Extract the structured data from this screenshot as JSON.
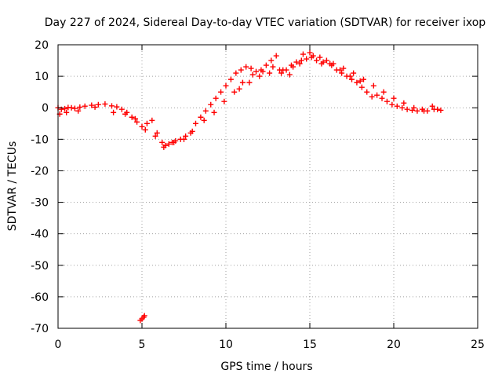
{
  "chart_data": {
    "type": "scatter",
    "title": "Day 227 of 2024, Sidereal Day-to-day VTEC variation (SDTVAR) for receiver ixop",
    "xlabel": "GPS time / hours",
    "ylabel": "SDTVAR / TECUs",
    "xlim": [
      0,
      25
    ],
    "ylim": [
      -70,
      20
    ],
    "x_ticks": [
      "0",
      "5",
      "10",
      "15",
      "20",
      "25"
    ],
    "y_ticks": [
      "20",
      "10",
      "0",
      "-10",
      "-20",
      "-30",
      "-40",
      "-50",
      "-60",
      "-70"
    ],
    "grid": true,
    "marker": "+",
    "series": [
      {
        "name": "SDTVAR",
        "color": "#ff0000",
        "x": [
          0.0,
          0.2,
          0.4,
          0.6,
          0.8,
          1.0,
          1.3,
          1.6,
          2.0,
          2.4,
          2.8,
          3.2,
          3.5,
          3.8,
          4.1,
          4.4,
          4.7,
          5.0,
          5.3,
          5.6,
          5.9,
          6.2,
          6.4,
          6.6,
          6.8,
          7.0,
          7.3,
          7.6,
          7.9,
          8.2,
          8.5,
          8.8,
          9.1,
          9.4,
          9.7,
          10.0,
          10.3,
          10.6,
          10.9,
          11.2,
          11.5,
          11.8,
          12.1,
          12.4,
          12.7,
          13.0,
          13.3,
          13.6,
          13.9,
          14.2,
          14.5,
          14.8,
          15.1,
          15.4,
          15.7,
          16.0,
          16.3,
          16.6,
          16.9,
          17.2,
          17.5,
          17.8,
          18.1,
          18.4,
          18.7,
          19.0,
          19.3,
          19.6,
          19.9,
          20.2,
          20.5,
          20.8,
          21.1,
          21.4,
          21.7,
          22.0,
          22.3,
          22.6,
          22.8,
          0.1,
          0.5,
          1.2,
          2.2,
          3.3,
          4.0,
          4.6,
          5.2,
          5.8,
          6.3,
          6.9,
          7.5,
          8.0,
          8.7,
          9.3,
          9.9,
          10.5,
          11.0,
          11.6,
          12.2,
          12.8,
          13.4,
          14.0,
          14.6,
          15.2,
          15.8,
          16.4,
          17.0,
          17.6,
          18.2,
          18.8,
          19.4,
          20.0,
          20.6,
          21.2,
          21.8,
          22.4,
          10.8,
          11.4,
          12.0,
          12.6,
          13.2,
          13.8,
          14.4,
          15.0,
          15.6,
          16.2,
          16.8,
          17.4,
          18.0,
          4.9,
          5.0,
          5.1,
          5.15
        ],
        "y": [
          0.0,
          -0.5,
          -0.3,
          0.1,
          0.0,
          -0.2,
          0.2,
          0.5,
          0.8,
          1.0,
          1.2,
          0.6,
          0.3,
          -0.5,
          -1.5,
          -3.0,
          -4.5,
          -6.0,
          -5.0,
          -4.0,
          -8.0,
          -11.0,
          -12.0,
          -11.5,
          -11.0,
          -10.5,
          -10.0,
          -9.0,
          -8.0,
          -5.0,
          -3.0,
          -1.0,
          1.0,
          3.0,
          5.0,
          7.0,
          9.0,
          11.0,
          12.0,
          13.0,
          12.5,
          11.5,
          12.0,
          13.5,
          15.0,
          16.5,
          11.0,
          12.0,
          13.5,
          14.5,
          15.0,
          15.5,
          16.0,
          15.0,
          14.0,
          15.0,
          13.5,
          12.0,
          11.0,
          10.0,
          9.0,
          8.0,
          6.5,
          5.0,
          3.5,
          4.0,
          3.0,
          2.0,
          1.0,
          0.5,
          0.0,
          -0.5,
          -0.8,
          -1.0,
          -0.5,
          -1.0,
          0.5,
          -0.5,
          -0.8,
          -2.0,
          -1.5,
          -1.0,
          0.2,
          -1.5,
          -2.0,
          -3.5,
          -7.0,
          -9.0,
          -12.5,
          -11.0,
          -10.0,
          -7.5,
          -4.0,
          -1.5,
          2.0,
          5.0,
          8.0,
          10.5,
          11.5,
          13.0,
          12.0,
          13.0,
          17.0,
          16.5,
          14.5,
          14.0,
          12.5,
          11.0,
          9.0,
          7.0,
          5.0,
          3.0,
          1.5,
          0.0,
          -1.0,
          -0.5,
          6.0,
          8.0,
          10.0,
          11.0,
          12.0,
          10.5,
          14.0,
          17.5,
          16.0,
          14.0,
          12.0,
          10.0,
          8.5,
          -67.5,
          -67.0,
          -66.5,
          -66.0
        ]
      }
    ]
  }
}
